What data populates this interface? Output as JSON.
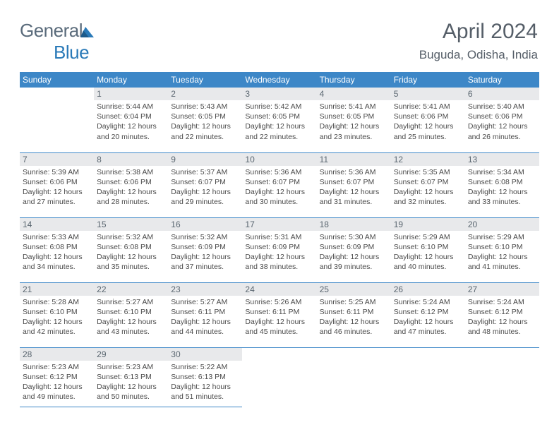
{
  "logo": {
    "text1": "General",
    "text2": "Blue"
  },
  "title": "April 2024",
  "subtitle": "Buguda, Odisha, India",
  "colors": {
    "header_bg": "#3d87c7",
    "header_text": "#ffffff",
    "daynum_bg": "#e8e9eb",
    "daynum_text": "#5a6670",
    "body_text": "#4a4a4a",
    "divider": "#3d87c7",
    "title_text": "#555e68",
    "logo_gray": "#5a6b7b",
    "logo_blue": "#2a7ab8"
  },
  "typography": {
    "title_fontsize": 30,
    "subtitle_fontsize": 17,
    "header_fontsize": 12,
    "daynum_fontsize": 12,
    "body_fontsize": 10.5
  },
  "weekdays": [
    "Sunday",
    "Monday",
    "Tuesday",
    "Wednesday",
    "Thursday",
    "Friday",
    "Saturday"
  ],
  "weeks": [
    [
      null,
      {
        "n": "1",
        "sr": "5:44 AM",
        "ss": "6:04 PM",
        "dl": "12 hours and 20 minutes."
      },
      {
        "n": "2",
        "sr": "5:43 AM",
        "ss": "6:05 PM",
        "dl": "12 hours and 22 minutes."
      },
      {
        "n": "3",
        "sr": "5:42 AM",
        "ss": "6:05 PM",
        "dl": "12 hours and 22 minutes."
      },
      {
        "n": "4",
        "sr": "5:41 AM",
        "ss": "6:05 PM",
        "dl": "12 hours and 23 minutes."
      },
      {
        "n": "5",
        "sr": "5:41 AM",
        "ss": "6:06 PM",
        "dl": "12 hours and 25 minutes."
      },
      {
        "n": "6",
        "sr": "5:40 AM",
        "ss": "6:06 PM",
        "dl": "12 hours and 26 minutes."
      }
    ],
    [
      {
        "n": "7",
        "sr": "5:39 AM",
        "ss": "6:06 PM",
        "dl": "12 hours and 27 minutes."
      },
      {
        "n": "8",
        "sr": "5:38 AM",
        "ss": "6:06 PM",
        "dl": "12 hours and 28 minutes."
      },
      {
        "n": "9",
        "sr": "5:37 AM",
        "ss": "6:07 PM",
        "dl": "12 hours and 29 minutes."
      },
      {
        "n": "10",
        "sr": "5:36 AM",
        "ss": "6:07 PM",
        "dl": "12 hours and 30 minutes."
      },
      {
        "n": "11",
        "sr": "5:36 AM",
        "ss": "6:07 PM",
        "dl": "12 hours and 31 minutes."
      },
      {
        "n": "12",
        "sr": "5:35 AM",
        "ss": "6:07 PM",
        "dl": "12 hours and 32 minutes."
      },
      {
        "n": "13",
        "sr": "5:34 AM",
        "ss": "6:08 PM",
        "dl": "12 hours and 33 minutes."
      }
    ],
    [
      {
        "n": "14",
        "sr": "5:33 AM",
        "ss": "6:08 PM",
        "dl": "12 hours and 34 minutes."
      },
      {
        "n": "15",
        "sr": "5:32 AM",
        "ss": "6:08 PM",
        "dl": "12 hours and 35 minutes."
      },
      {
        "n": "16",
        "sr": "5:32 AM",
        "ss": "6:09 PM",
        "dl": "12 hours and 37 minutes."
      },
      {
        "n": "17",
        "sr": "5:31 AM",
        "ss": "6:09 PM",
        "dl": "12 hours and 38 minutes."
      },
      {
        "n": "18",
        "sr": "5:30 AM",
        "ss": "6:09 PM",
        "dl": "12 hours and 39 minutes."
      },
      {
        "n": "19",
        "sr": "5:29 AM",
        "ss": "6:10 PM",
        "dl": "12 hours and 40 minutes."
      },
      {
        "n": "20",
        "sr": "5:29 AM",
        "ss": "6:10 PM",
        "dl": "12 hours and 41 minutes."
      }
    ],
    [
      {
        "n": "21",
        "sr": "5:28 AM",
        "ss": "6:10 PM",
        "dl": "12 hours and 42 minutes."
      },
      {
        "n": "22",
        "sr": "5:27 AM",
        "ss": "6:10 PM",
        "dl": "12 hours and 43 minutes."
      },
      {
        "n": "23",
        "sr": "5:27 AM",
        "ss": "6:11 PM",
        "dl": "12 hours and 44 minutes."
      },
      {
        "n": "24",
        "sr": "5:26 AM",
        "ss": "6:11 PM",
        "dl": "12 hours and 45 minutes."
      },
      {
        "n": "25",
        "sr": "5:25 AM",
        "ss": "6:11 PM",
        "dl": "12 hours and 46 minutes."
      },
      {
        "n": "26",
        "sr": "5:24 AM",
        "ss": "6:12 PM",
        "dl": "12 hours and 47 minutes."
      },
      {
        "n": "27",
        "sr": "5:24 AM",
        "ss": "6:12 PM",
        "dl": "12 hours and 48 minutes."
      }
    ],
    [
      {
        "n": "28",
        "sr": "5:23 AM",
        "ss": "6:12 PM",
        "dl": "12 hours and 49 minutes."
      },
      {
        "n": "29",
        "sr": "5:23 AM",
        "ss": "6:13 PM",
        "dl": "12 hours and 50 minutes."
      },
      {
        "n": "30",
        "sr": "5:22 AM",
        "ss": "6:13 PM",
        "dl": "12 hours and 51 minutes."
      },
      null,
      null,
      null,
      null
    ]
  ],
  "labels": {
    "sunrise": "Sunrise:",
    "sunset": "Sunset:",
    "daylight": "Daylight:"
  }
}
